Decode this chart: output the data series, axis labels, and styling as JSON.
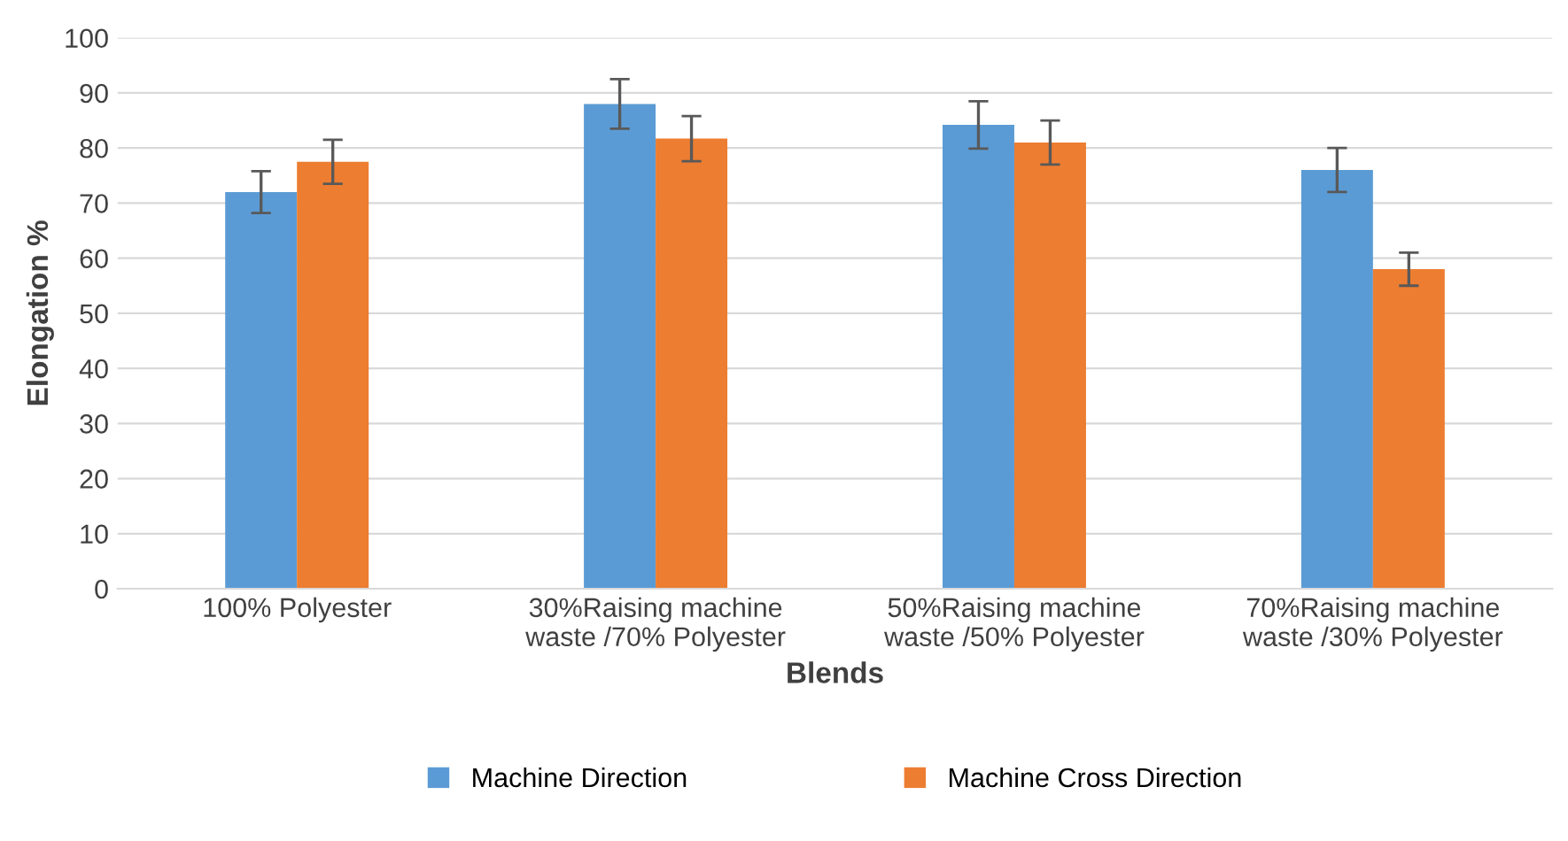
{
  "chart_data": {
    "type": "bar",
    "xlabel": "Blends",
    "ylabel": "Elongation %",
    "categories": [
      "100% Polyester",
      "30%Raising machine\nwaste /70% Polyester",
      "50%Raising machine\nwaste /50% Polyester",
      "70%Raising machine\nwaste /30% Polyester"
    ],
    "series": [
      {
        "name": "Machine Direction",
        "color": "#5b9bd5",
        "values": [
          72,
          88,
          84.2,
          76
        ],
        "errors": [
          3.8,
          4.5,
          4.3,
          4
        ]
      },
      {
        "name": "Machine Cross Direction",
        "color": "#ed7d31",
        "values": [
          77.5,
          81.7,
          81,
          58
        ],
        "errors": [
          4,
          4.1,
          4,
          3
        ]
      }
    ],
    "ylim": [
      0,
      100
    ],
    "yticks": [
      0,
      10,
      20,
      30,
      40,
      50,
      60,
      70,
      80,
      90,
      100
    ],
    "grid": "y",
    "legend": "bottom"
  }
}
